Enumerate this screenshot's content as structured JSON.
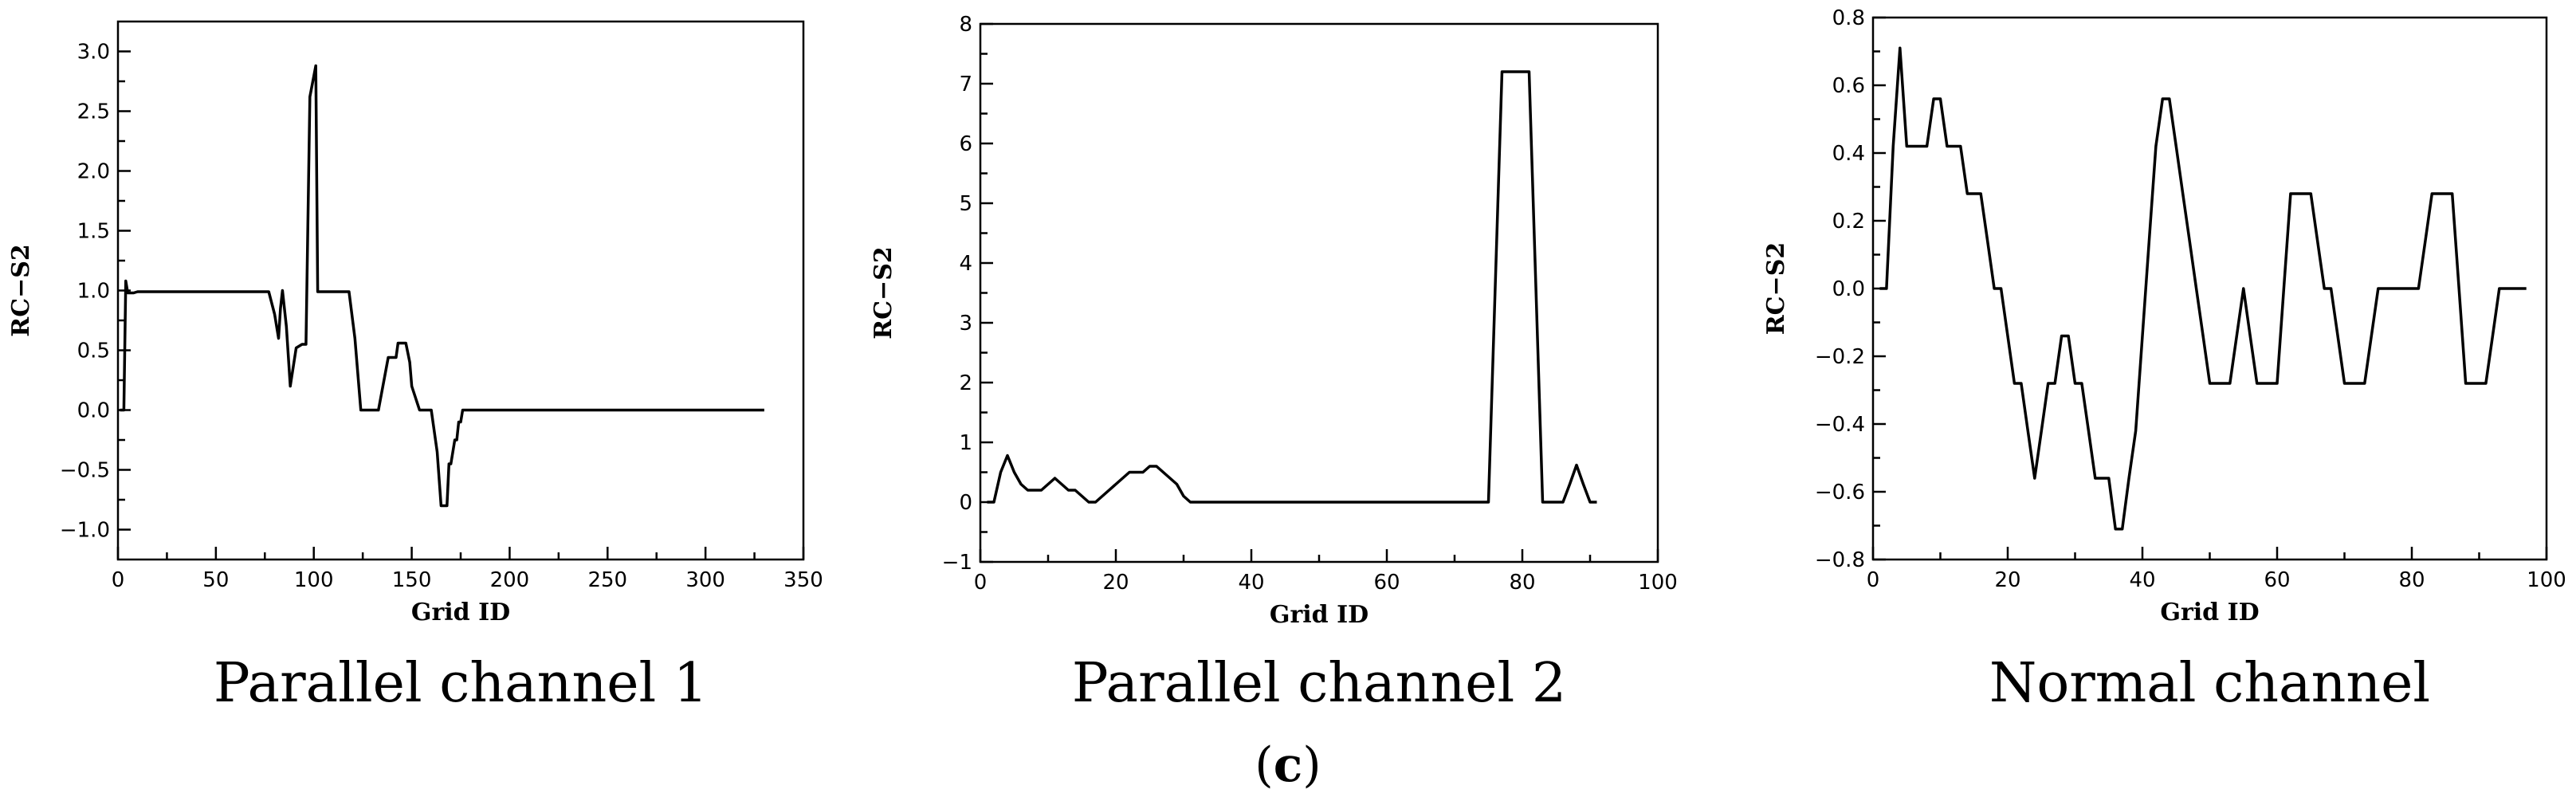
{
  "figure_label": {
    "open": "(",
    "letter": "c",
    "close": ")"
  },
  "chart_data": [
    {
      "type": "line",
      "caption": "Parallel channel 1",
      "xlabel": "Grid ID",
      "ylabel": "RC−S2",
      "xlim": [
        0,
        350
      ],
      "ylim": [
        -1.25,
        3.25
      ],
      "xticks": [
        0,
        50,
        100,
        150,
        200,
        250,
        300,
        350
      ],
      "yticks": [
        -1.0,
        -0.5,
        0.0,
        0.5,
        1.0,
        1.5,
        2.0,
        2.5,
        3.0
      ],
      "xtick_labels": [
        "0",
        "50",
        "100",
        "150",
        "200",
        "250",
        "300",
        "350"
      ],
      "ytick_labels": [
        "−1.0",
        "−0.5",
        "0.0",
        "0.5",
        "1.0",
        "1.5",
        "2.0",
        "2.5",
        "3.0"
      ],
      "series": [
        {
          "x": [
            1,
            3,
            4,
            5,
            6,
            8,
            10,
            20,
            40,
            60,
            77,
            80,
            82,
            83,
            84,
            86,
            88,
            91,
            94,
            96,
            98,
            101,
            102,
            110,
            118,
            121,
            124,
            128,
            133,
            138,
            142,
            143,
            147,
            149,
            150,
            154,
            156,
            160,
            163,
            165,
            166,
            168,
            169,
            170,
            172,
            173,
            174,
            175,
            176,
            177,
            178,
            200,
            250,
            300,
            330
          ],
          "y": [
            0,
            0,
            1.08,
            0.98,
            0.98,
            0.98,
            0.99,
            0.99,
            0.99,
            0.99,
            0.99,
            0.8,
            0.6,
            0.85,
            1.0,
            0.7,
            0.2,
            0.52,
            0.55,
            0.55,
            2.62,
            2.88,
            0.99,
            0.99,
            0.99,
            0.6,
            0.0,
            0.0,
            0.0,
            0.44,
            0.44,
            0.56,
            0.56,
            0.4,
            0.2,
            0.0,
            0.0,
            0.0,
            -0.35,
            -0.8,
            -0.8,
            -0.8,
            -0.45,
            -0.45,
            -0.25,
            -0.25,
            -0.1,
            -0.1,
            0.0,
            0.0,
            0.0,
            0.0,
            0.0,
            0.0,
            0.0
          ]
        }
      ]
    },
    {
      "type": "line",
      "caption": "Parallel channel 2",
      "xlabel": "Grid ID",
      "ylabel": "RC−S2",
      "xlim": [
        0,
        100
      ],
      "ylim": [
        -1,
        8
      ],
      "xticks": [
        0,
        20,
        40,
        60,
        80,
        100
      ],
      "yticks": [
        -1,
        0,
        1,
        2,
        3,
        4,
        5,
        6,
        7,
        8
      ],
      "xtick_labels": [
        "0",
        "20",
        "40",
        "60",
        "80",
        "100"
      ],
      "ytick_labels": [
        "−1",
        "0",
        "1",
        "2",
        "3",
        "4",
        "5",
        "6",
        "7",
        "8"
      ],
      "series": [
        {
          "x": [
            1,
            2,
            3,
            4,
            5,
            6,
            7,
            8,
            9,
            10,
            11,
            12,
            13,
            14,
            15,
            16,
            17,
            18,
            19,
            20,
            21,
            22,
            23,
            24,
            25,
            26,
            27,
            28,
            29,
            30,
            31,
            32,
            40,
            60,
            75,
            76,
            77,
            78,
            80,
            81,
            82,
            83,
            85,
            86,
            87,
            88,
            89,
            90,
            91
          ],
          "y": [
            0,
            0,
            0.5,
            0.78,
            0.5,
            0.3,
            0.2,
            0.2,
            0.2,
            0.3,
            0.4,
            0.3,
            0.2,
            0.2,
            0.1,
            0.0,
            0.0,
            0.1,
            0.2,
            0.3,
            0.4,
            0.5,
            0.5,
            0.5,
            0.6,
            0.6,
            0.5,
            0.4,
            0.3,
            0.1,
            0.0,
            0.0,
            0.0,
            0.0,
            0.0,
            3.6,
            7.2,
            7.2,
            7.2,
            7.2,
            3.6,
            0.0,
            0.0,
            0.0,
            0.3,
            0.62,
            0.3,
            0.0,
            0.0
          ]
        }
      ]
    },
    {
      "type": "line",
      "caption": "Normal channel",
      "xlabel": "Grid ID",
      "ylabel": "RC−S2",
      "xlim": [
        0,
        100
      ],
      "ylim": [
        -0.8,
        0.8
      ],
      "xticks": [
        0,
        20,
        40,
        60,
        80,
        100
      ],
      "yticks": [
        -0.8,
        -0.6,
        -0.4,
        -0.2,
        0.0,
        0.2,
        0.4,
        0.6,
        0.8
      ],
      "xtick_labels": [
        "0",
        "20",
        "40",
        "60",
        "80",
        "100"
      ],
      "ytick_labels": [
        "−0.8",
        "−0.6",
        "−0.4",
        "−0.2",
        "0.0",
        "0.2",
        "0.4",
        "0.6",
        "0.8"
      ],
      "series": [
        {
          "x": [
            1,
            2,
            3,
            4,
            5,
            6,
            7,
            8,
            9,
            10,
            11,
            12,
            13,
            14,
            15,
            16,
            17,
            18,
            19,
            20,
            21,
            22,
            23,
            24,
            25,
            26,
            27,
            28,
            29,
            30,
            31,
            32,
            33,
            34,
            35,
            36,
            37,
            38,
            39,
            40,
            41,
            42,
            43,
            44,
            45,
            46,
            47,
            48,
            49,
            50,
            51,
            52,
            53,
            54,
            55,
            56,
            57,
            58,
            59,
            60,
            61,
            62,
            63,
            64,
            65,
            66,
            67,
            68,
            69,
            70,
            71,
            72,
            73,
            74,
            75,
            76,
            77,
            78,
            79,
            80,
            81,
            82,
            83,
            84,
            85,
            86,
            87,
            88,
            89,
            90,
            91,
            92,
            93,
            94,
            95,
            96,
            97
          ],
          "y": [
            0,
            0,
            0.42,
            0.71,
            0.42,
            0.42,
            0.42,
            0.42,
            0.56,
            0.56,
            0.42,
            0.42,
            0.42,
            0.28,
            0.28,
            0.28,
            0.14,
            0,
            0,
            -0.14,
            -0.28,
            -0.28,
            -0.42,
            -0.56,
            -0.42,
            -0.28,
            -0.28,
            -0.14,
            -0.14,
            -0.28,
            -0.28,
            -0.42,
            -0.56,
            -0.56,
            -0.56,
            -0.71,
            -0.71,
            -0.56,
            -0.42,
            -0.14,
            0.14,
            0.42,
            0.56,
            0.56,
            0.42,
            0.28,
            0.14,
            0,
            -0.14,
            -0.28,
            -0.28,
            -0.28,
            -0.28,
            -0.14,
            0,
            -0.14,
            -0.28,
            -0.28,
            -0.28,
            -0.28,
            0,
            0.28,
            0.28,
            0.28,
            0.28,
            0.14,
            0,
            0,
            -0.14,
            -0.28,
            -0.28,
            -0.28,
            -0.28,
            -0.14,
            0,
            0,
            0,
            0,
            0,
            0,
            0,
            0.14,
            0.28,
            0.28,
            0.28,
            0.28,
            0,
            -0.28,
            -0.28,
            -0.28,
            -0.28,
            -0.14,
            0,
            0,
            0,
            0,
            0
          ]
        }
      ]
    }
  ]
}
